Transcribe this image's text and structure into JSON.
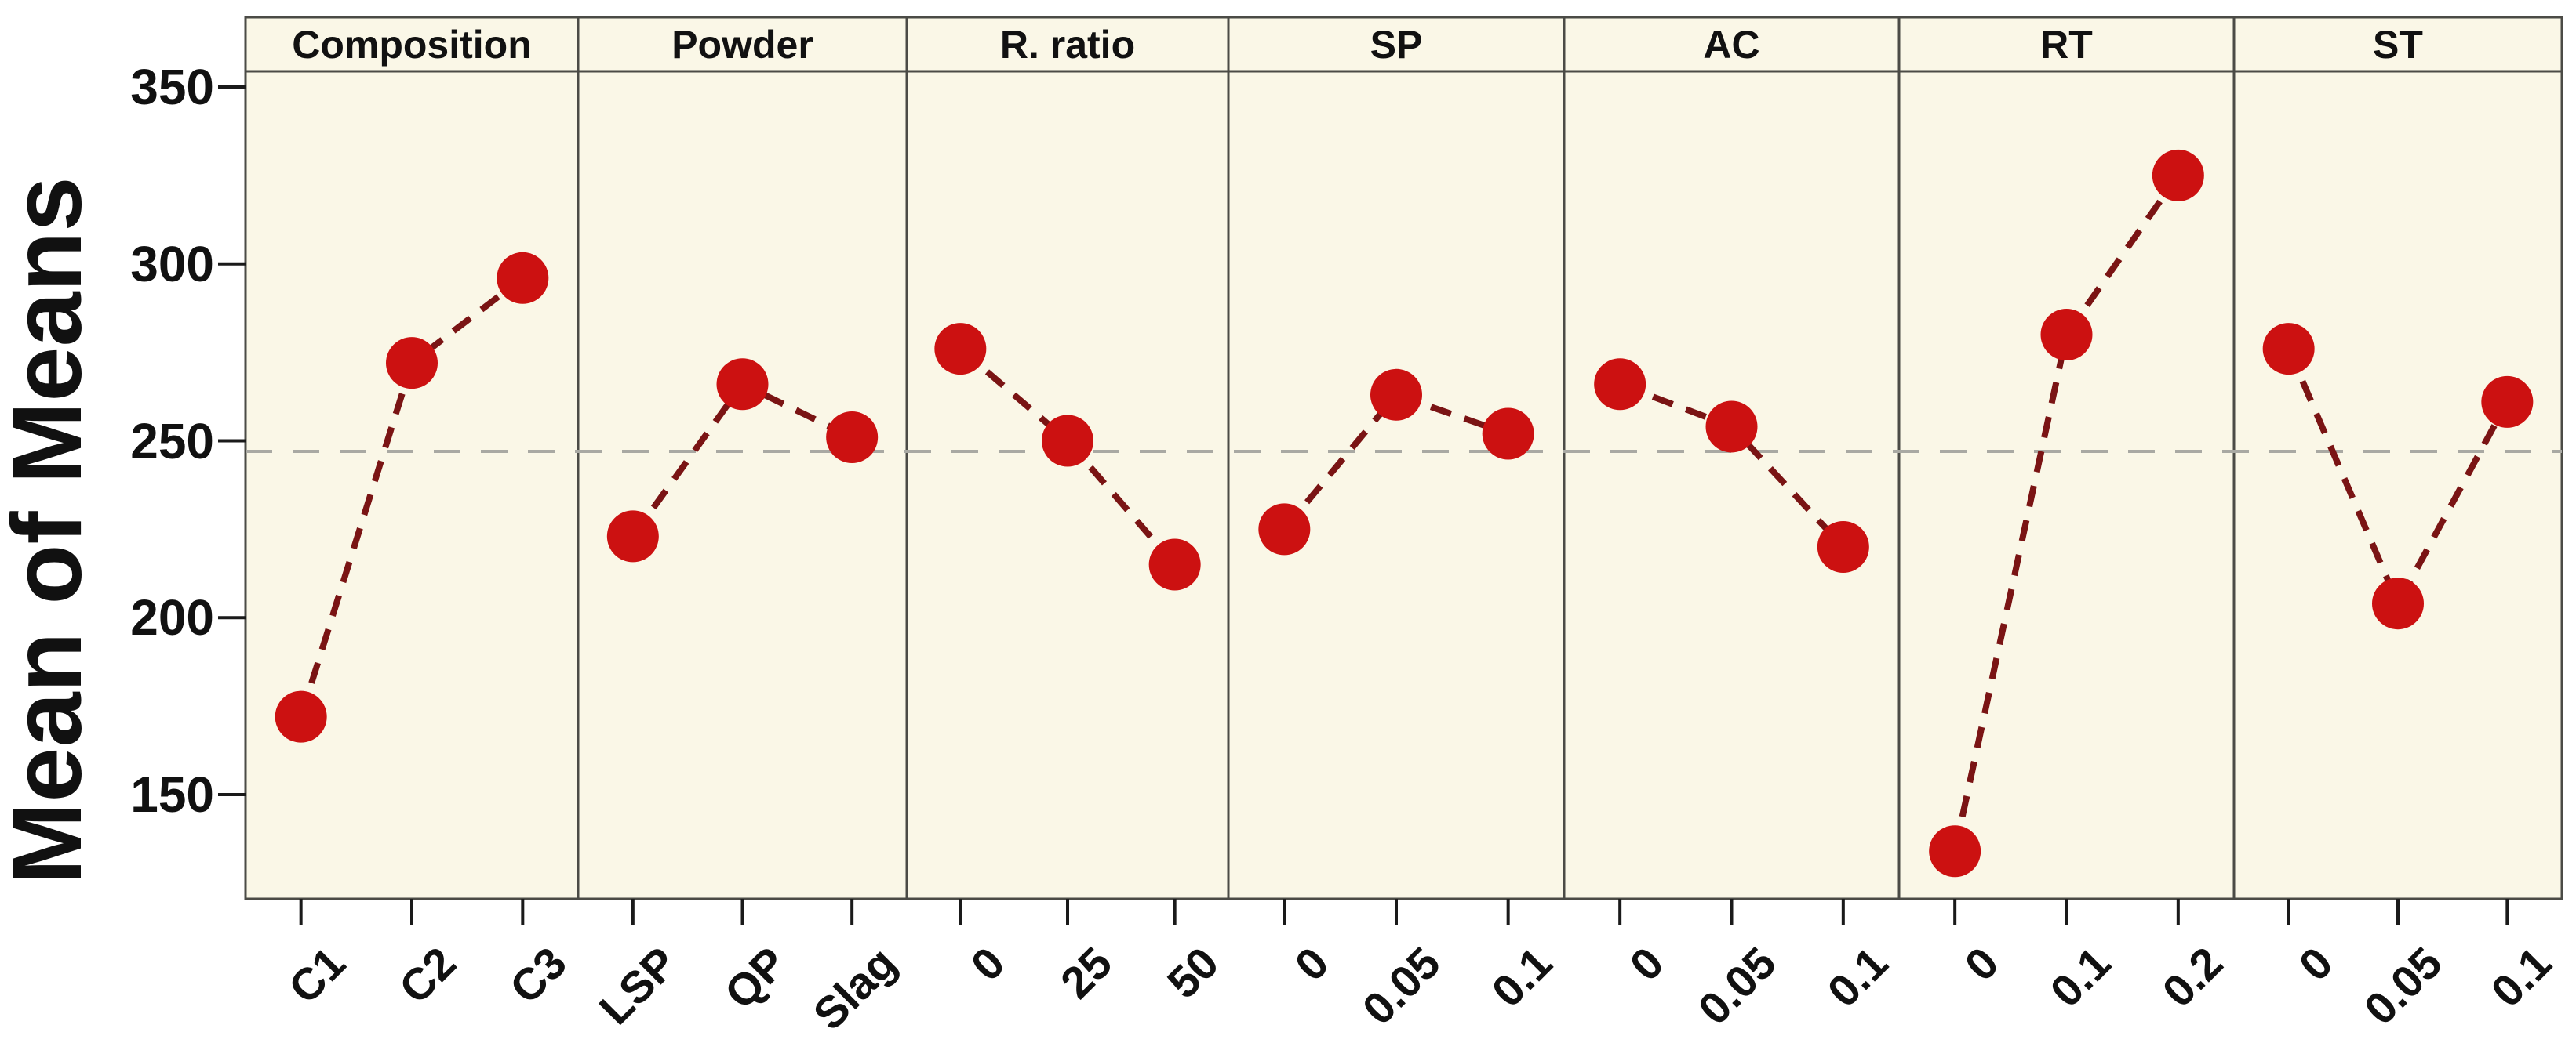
{
  "figure": {
    "y_axis_title": "Mean of Means",
    "colors": {
      "panel_background": "#faf7e7",
      "panel_border": "#4b4b46",
      "data_point": "#cc1111",
      "connector_line": "#7a1414",
      "reference_line": "#a9a9a3",
      "tick": "#1a1a1a",
      "text": "#111111",
      "figure_background": "#ffffff"
    }
  },
  "chart_data": {
    "type": "line",
    "subtype": "main-effects-plot",
    "title": "",
    "ylabel": "Mean of Means",
    "xlabel": "",
    "yticks": [
      350,
      300,
      250,
      200,
      150
    ],
    "ylim": [
      120,
      354
    ],
    "grid": false,
    "legend": "none",
    "reference_line_value": 247,
    "panels": [
      {
        "factor": "Composition",
        "categories": [
          "C1",
          "C2",
          "C3"
        ],
        "values": [
          172,
          272,
          296
        ]
      },
      {
        "factor": "Powder",
        "categories": [
          "LSP",
          "QP",
          "Slag"
        ],
        "values": [
          223,
          266,
          251
        ]
      },
      {
        "factor": "R. ratio",
        "categories": [
          "0",
          "25",
          "50"
        ],
        "values": [
          276,
          250,
          215
        ]
      },
      {
        "factor": "SP",
        "categories": [
          "0",
          "0.05",
          "0.1"
        ],
        "values": [
          225,
          263,
          252
        ]
      },
      {
        "factor": "AC",
        "categories": [
          "0",
          "0.05",
          "0.1"
        ],
        "values": [
          266,
          254,
          220
        ]
      },
      {
        "factor": "RT",
        "categories": [
          "0",
          "0.1",
          "0.2"
        ],
        "values": [
          134,
          280,
          325
        ]
      },
      {
        "factor": "ST",
        "categories": [
          "0",
          "0.05",
          "0.1"
        ],
        "values": [
          276,
          204,
          261
        ]
      }
    ]
  }
}
